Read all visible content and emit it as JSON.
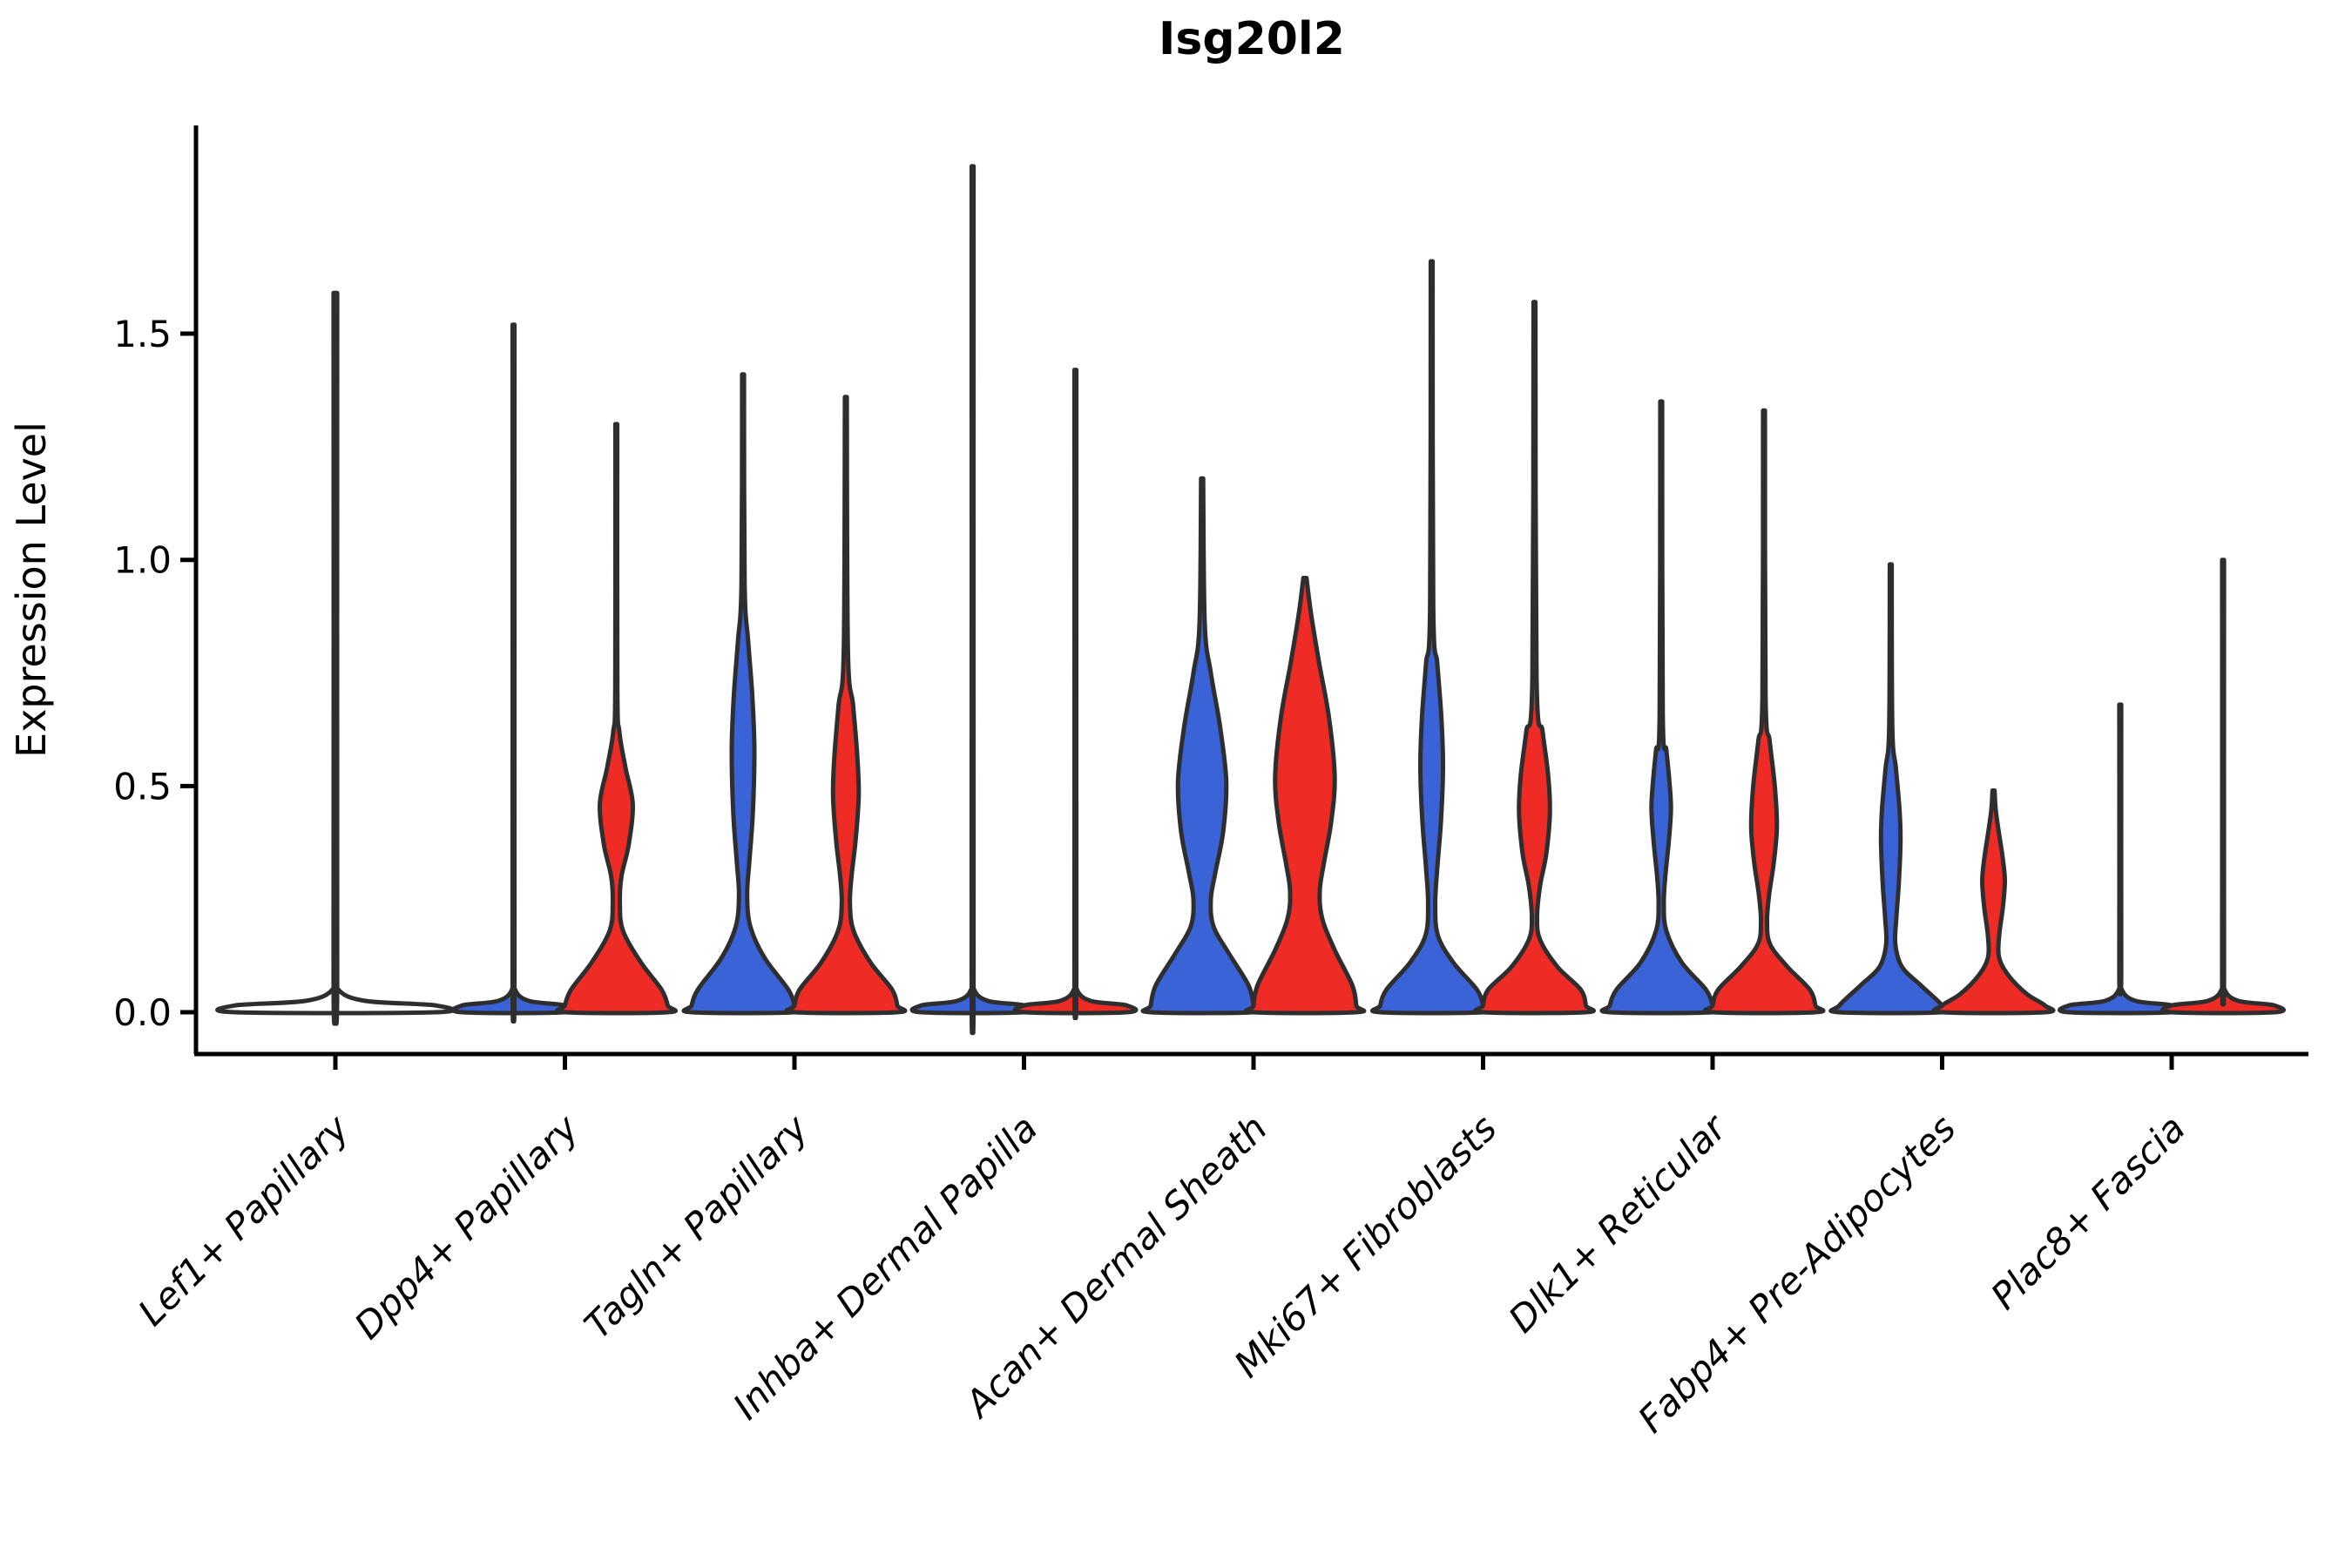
{
  "title": "Isg20l2",
  "colors": {
    "blue": "#3B63D8",
    "red": "#EE2B25",
    "outline": "#2E2E2E",
    "axis": "#000000"
  },
  "chart_data": {
    "type": "violin",
    "split": true,
    "title": "Isg20l2",
    "ylabel": "Expression Level",
    "xlabel": "",
    "ylim_view": [
      0,
      1.96
    ],
    "grid": false,
    "legend": "none",
    "y_ticks": [
      {
        "value": 0.0,
        "label": "0.0"
      },
      {
        "value": 0.5,
        "label": "0.5"
      },
      {
        "value": 1.0,
        "label": "1.0"
      },
      {
        "value": 1.5,
        "label": "1.5"
      }
    ],
    "x_tick_rotation_deg": 45,
    "categories": [
      {
        "label": "Lef1+ Papillary",
        "violins": [
          {
            "group": "single",
            "max": 1.59,
            "shape": "flat-with-spike",
            "profile": [
              [
                1.59,
                0.018
              ],
              [
                0.1,
                0.018
              ],
              [
                0.05,
                0.03
              ],
              [
                0.025,
                0.3
              ],
              [
                0.015,
                1
              ],
              [
                0,
                1
              ]
            ]
          }
        ]
      },
      {
        "label": "Dpp4+ Papillary",
        "violins": [
          {
            "group": "blue",
            "max": 1.52,
            "shape": "flat-with-spike",
            "profile": [
              [
                1.52,
                0.018
              ],
              [
                0.1,
                0.018
              ],
              [
                0.05,
                0.03
              ],
              [
                0.025,
                0.3
              ],
              [
                0.015,
                1
              ],
              [
                0,
                1
              ]
            ]
          },
          {
            "group": "red",
            "max": 1.3,
            "shape": "spike-bulge-base",
            "bulge_at": 0.46,
            "profile": [
              [
                1.3,
                0.018
              ],
              [
                0.72,
                0.02
              ],
              [
                0.62,
                0.06
              ],
              [
                0.54,
                0.18
              ],
              [
                0.46,
                0.32
              ],
              [
                0.37,
                0.24
              ],
              [
                0.3,
                0.1
              ],
              [
                0.24,
                0.07
              ],
              [
                0.18,
                0.13
              ],
              [
                0.11,
                0.48
              ],
              [
                0.05,
                0.88
              ],
              [
                0.015,
                1
              ],
              [
                0,
                1
              ]
            ]
          }
        ]
      },
      {
        "label": "Tagln+ Papillary",
        "violins": [
          {
            "group": "blue",
            "max": 1.41,
            "shape": "spike-bulge-base",
            "bulge_at": 0.58,
            "profile": [
              [
                1.41,
                0.018
              ],
              [
                0.95,
                0.03
              ],
              [
                0.82,
                0.1
              ],
              [
                0.7,
                0.18
              ],
              [
                0.58,
                0.22
              ],
              [
                0.44,
                0.19
              ],
              [
                0.33,
                0.12
              ],
              [
                0.26,
                0.08
              ],
              [
                0.19,
                0.14
              ],
              [
                0.12,
                0.42
              ],
              [
                0.05,
                0.88
              ],
              [
                0.015,
                1
              ],
              [
                0,
                1
              ]
            ]
          },
          {
            "group": "red",
            "max": 1.36,
            "shape": "spike-bulge-base",
            "bulge_at": 0.48,
            "profile": [
              [
                1.36,
                0.018
              ],
              [
                0.8,
                0.04
              ],
              [
                0.68,
                0.14
              ],
              [
                0.57,
                0.22
              ],
              [
                0.48,
                0.25
              ],
              [
                0.38,
                0.19
              ],
              [
                0.3,
                0.11
              ],
              [
                0.24,
                0.08
              ],
              [
                0.18,
                0.15
              ],
              [
                0.11,
                0.48
              ],
              [
                0.05,
                0.9
              ],
              [
                0.015,
                1
              ],
              [
                0,
                1
              ]
            ]
          }
        ]
      },
      {
        "label": "Inhba+ Dermal Papilla",
        "violins": [
          {
            "group": "blue",
            "max": 1.87,
            "shape": "flat-with-spike",
            "profile": [
              [
                1.87,
                0.018
              ],
              [
                0.1,
                0.018
              ],
              [
                0.05,
                0.03
              ],
              [
                0.025,
                0.3
              ],
              [
                0.015,
                1
              ],
              [
                0,
                1
              ]
            ]
          },
          {
            "group": "red",
            "max": 1.42,
            "shape": "flat-with-spike",
            "profile": [
              [
                1.42,
                0.018
              ],
              [
                0.1,
                0.018
              ],
              [
                0.05,
                0.03
              ],
              [
                0.025,
                0.3
              ],
              [
                0.015,
                1
              ],
              [
                0,
                1
              ]
            ]
          }
        ]
      },
      {
        "label": "Acan+ Dermal Sheath",
        "violins": [
          {
            "group": "blue",
            "max": 1.18,
            "shape": "spike-bulge-base",
            "bulge_at": 0.51,
            "profile": [
              [
                1.18,
                0.02
              ],
              [
                0.86,
                0.05
              ],
              [
                0.75,
                0.17
              ],
              [
                0.63,
                0.35
              ],
              [
                0.51,
                0.47
              ],
              [
                0.4,
                0.41
              ],
              [
                0.31,
                0.26
              ],
              [
                0.25,
                0.17
              ],
              [
                0.19,
                0.22
              ],
              [
                0.13,
                0.52
              ],
              [
                0.06,
                0.9
              ],
              [
                0.015,
                1
              ],
              [
                0,
                1
              ]
            ]
          },
          {
            "group": "red",
            "max": 0.96,
            "shape": "wide-bulge-base",
            "bulge_at": 0.52,
            "profile": [
              [
                0.96,
                0.03
              ],
              [
                0.88,
                0.12
              ],
              [
                0.77,
                0.28
              ],
              [
                0.65,
                0.47
              ],
              [
                0.52,
                0.58
              ],
              [
                0.42,
                0.51
              ],
              [
                0.33,
                0.37
              ],
              [
                0.27,
                0.29
              ],
              [
                0.21,
                0.33
              ],
              [
                0.14,
                0.57
              ],
              [
                0.06,
                0.92
              ],
              [
                0.015,
                1
              ],
              [
                0,
                1
              ]
            ]
          }
        ]
      },
      {
        "label": "Mki67+ Fibroblasts",
        "violins": [
          {
            "group": "blue",
            "max": 1.66,
            "shape": "spike-bulge-base",
            "bulge_at": 0.54,
            "profile": [
              [
                1.66,
                0.018
              ],
              [
                0.9,
                0.03
              ],
              [
                0.77,
                0.11
              ],
              [
                0.65,
                0.19
              ],
              [
                0.54,
                0.22
              ],
              [
                0.42,
                0.18
              ],
              [
                0.32,
                0.11
              ],
              [
                0.24,
                0.07
              ],
              [
                0.17,
                0.12
              ],
              [
                0.11,
                0.42
              ],
              [
                0.05,
                0.88
              ],
              [
                0.015,
                1
              ],
              [
                0,
                1
              ]
            ]
          },
          {
            "group": "red",
            "max": 1.57,
            "shape": "spike-bulge-base",
            "bulge_at": 0.44,
            "profile": [
              [
                1.57,
                0.018
              ],
              [
                0.74,
                0.04
              ],
              [
                0.62,
                0.16
              ],
              [
                0.52,
                0.27
              ],
              [
                0.44,
                0.3
              ],
              [
                0.35,
                0.23
              ],
              [
                0.28,
                0.11
              ],
              [
                0.21,
                0.05
              ],
              [
                0.16,
                0.11
              ],
              [
                0.1,
                0.45
              ],
              [
                0.05,
                0.9
              ],
              [
                0.015,
                1
              ],
              [
                0,
                1
              ]
            ]
          }
        ]
      },
      {
        "label": "Dlk1+ Reticular",
        "violins": [
          {
            "group": "blue",
            "max": 1.35,
            "shape": "spike-bulge-base",
            "bulge_at": 0.45,
            "profile": [
              [
                1.35,
                0.018
              ],
              [
                0.66,
                0.03
              ],
              [
                0.58,
                0.1
              ],
              [
                0.51,
                0.16
              ],
              [
                0.45,
                0.19
              ],
              [
                0.38,
                0.15
              ],
              [
                0.3,
                0.08
              ],
              [
                0.24,
                0.05
              ],
              [
                0.18,
                0.1
              ],
              [
                0.11,
                0.4
              ],
              [
                0.05,
                0.87
              ],
              [
                0.015,
                1
              ],
              [
                0,
                1
              ]
            ]
          },
          {
            "group": "red",
            "max": 1.33,
            "shape": "spike-bulge-base",
            "bulge_at": 0.41,
            "profile": [
              [
                1.33,
                0.018
              ],
              [
                0.7,
                0.03
              ],
              [
                0.6,
                0.11
              ],
              [
                0.5,
                0.21
              ],
              [
                0.41,
                0.25
              ],
              [
                0.33,
                0.19
              ],
              [
                0.26,
                0.1
              ],
              [
                0.2,
                0.06
              ],
              [
                0.15,
                0.12
              ],
              [
                0.1,
                0.46
              ],
              [
                0.05,
                0.89
              ],
              [
                0.015,
                1
              ],
              [
                0,
                1
              ]
            ]
          }
        ]
      },
      {
        "label": "Fabp4+ Pre-Adipocytes",
        "violins": [
          {
            "group": "blue",
            "max": 0.99,
            "shape": "spike-bulge-base",
            "bulge_at": 0.38,
            "profile": [
              [
                0.99,
                0.018
              ],
              [
                0.63,
                0.03
              ],
              [
                0.54,
                0.1
              ],
              [
                0.45,
                0.17
              ],
              [
                0.38,
                0.19
              ],
              [
                0.29,
                0.16
              ],
              [
                0.21,
                0.11
              ],
              [
                0.15,
                0.09
              ],
              [
                0.1,
                0.22
              ],
              [
                0.06,
                0.58
              ],
              [
                0.015,
                1
              ],
              [
                0,
                1
              ]
            ]
          },
          {
            "group": "red",
            "max": 0.49,
            "shape": "spike-bulge-base",
            "bulge_at": 0.29,
            "profile": [
              [
                0.49,
                0.02
              ],
              [
                0.45,
                0.04
              ],
              [
                0.4,
                0.1
              ],
              [
                0.34,
                0.18
              ],
              [
                0.29,
                0.22
              ],
              [
                0.23,
                0.18
              ],
              [
                0.17,
                0.11
              ],
              [
                0.12,
                0.11
              ],
              [
                0.08,
                0.3
              ],
              [
                0.04,
                0.65
              ],
              [
                0.015,
                1
              ],
              [
                0,
                1
              ]
            ]
          }
        ]
      },
      {
        "label": "Plac8+ Fascia",
        "violins": [
          {
            "group": "blue",
            "max": 0.68,
            "shape": "flat-with-spike",
            "profile": [
              [
                0.68,
                0.018
              ],
              [
                0.1,
                0.018
              ],
              [
                0.05,
                0.03
              ],
              [
                0.025,
                0.3
              ],
              [
                0.015,
                1
              ],
              [
                0,
                1
              ]
            ]
          },
          {
            "group": "red",
            "max": 1.0,
            "shape": "flat-with-spike",
            "profile": [
              [
                1.0,
                0.018
              ],
              [
                0.1,
                0.018
              ],
              [
                0.05,
                0.03
              ],
              [
                0.025,
                0.3
              ],
              [
                0.015,
                1
              ],
              [
                0,
                1
              ]
            ]
          }
        ]
      }
    ]
  }
}
